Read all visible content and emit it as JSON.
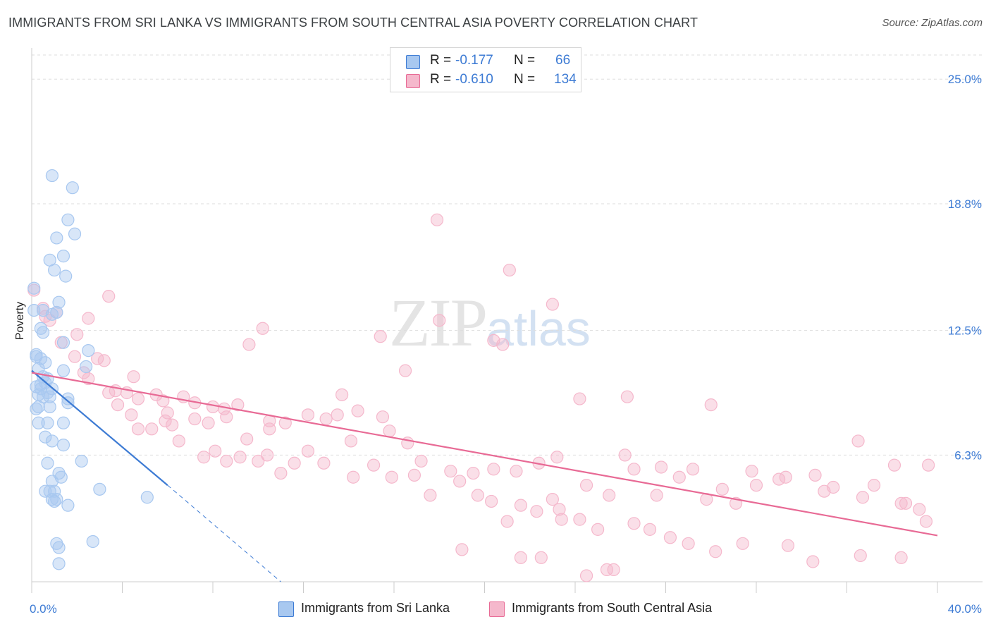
{
  "title": "IMMIGRANTS FROM SRI LANKA VS IMMIGRANTS FROM SOUTH CENTRAL ASIA POVERTY CORRELATION CHART",
  "source": "Source: ZipAtlas.com",
  "watermark": {
    "zip": "ZIP",
    "atlas": "atlas"
  },
  "colors": {
    "blue": "#3d7bd4",
    "blue_fill": "#a8c8f0",
    "pink": "#e86a95",
    "pink_fill": "#f5b8cc",
    "grid": "#dddddd"
  },
  "legend": {
    "rows": [
      {
        "r_label": "R =",
        "r_value": "-0.177",
        "n_label": "N =",
        "n_value": "66"
      },
      {
        "r_label": "R =",
        "r_value": "-0.610",
        "n_label": "N =",
        "n_value": "134"
      }
    ]
  },
  "bottom_legend": [
    "Immigrants from Sri Lanka",
    "Immigrants from South Central Asia"
  ],
  "chart_data": {
    "type": "scatter",
    "title": "IMMIGRANTS FROM SRI LANKA VS IMMIGRANTS FROM SOUTH CENTRAL ASIA POVERTY CORRELATION CHART",
    "xlabel": "",
    "ylabel": "Poverty",
    "xlim": [
      0,
      40
    ],
    "ylim": [
      0,
      26.2
    ],
    "x_tick_labels": [
      "0.0%",
      "40.0%"
    ],
    "y_ticks": [
      6.3,
      12.5,
      18.8,
      25.0
    ],
    "y_tick_labels": [
      "6.3%",
      "12.5%",
      "18.8%",
      "25.0%"
    ],
    "grid": true,
    "series": [
      {
        "name": "Immigrants from Sri Lanka",
        "color": "#3d7bd4",
        "fill": "#a8c8f0",
        "trend": {
          "x": [
            0,
            6.0
          ],
          "y": [
            10.5,
            4.8
          ],
          "dashed_to": [
            11.0,
            0
          ]
        },
        "points": [
          [
            0.9,
            20.2
          ],
          [
            1.8,
            19.6
          ],
          [
            1.6,
            18.0
          ],
          [
            1.1,
            17.1
          ],
          [
            1.9,
            17.3
          ],
          [
            1.4,
            16.2
          ],
          [
            0.8,
            16.0
          ],
          [
            1.0,
            15.5
          ],
          [
            1.5,
            15.2
          ],
          [
            0.1,
            14.6
          ],
          [
            1.2,
            13.9
          ],
          [
            0.5,
            13.5
          ],
          [
            0.9,
            13.3
          ],
          [
            1.1,
            13.4
          ],
          [
            0.4,
            12.6
          ],
          [
            0.5,
            12.4
          ],
          [
            1.4,
            11.9
          ],
          [
            2.5,
            11.5
          ],
          [
            0.2,
            11.3
          ],
          [
            0.4,
            11.1
          ],
          [
            0.6,
            10.9
          ],
          [
            0.3,
            10.6
          ],
          [
            1.4,
            10.5
          ],
          [
            2.4,
            10.7
          ],
          [
            0.5,
            10.2
          ],
          [
            0.7,
            10.1
          ],
          [
            0.6,
            9.9
          ],
          [
            0.2,
            9.7
          ],
          [
            0.4,
            9.6
          ],
          [
            0.9,
            9.6
          ],
          [
            0.7,
            9.4
          ],
          [
            0.3,
            9.3
          ],
          [
            0.5,
            9.2
          ],
          [
            0.8,
            9.2
          ],
          [
            1.6,
            9.1
          ],
          [
            1.6,
            8.9
          ],
          [
            0.3,
            8.7
          ],
          [
            0.8,
            8.7
          ],
          [
            0.2,
            8.6
          ],
          [
            0.3,
            7.9
          ],
          [
            0.7,
            7.9
          ],
          [
            1.4,
            7.9
          ],
          [
            0.6,
            7.2
          ],
          [
            0.9,
            7.0
          ],
          [
            1.4,
            6.8
          ],
          [
            2.2,
            6.0
          ],
          [
            0.7,
            5.9
          ],
          [
            1.2,
            5.4
          ],
          [
            1.3,
            5.2
          ],
          [
            0.9,
            5.0
          ],
          [
            0.8,
            4.5
          ],
          [
            1.0,
            4.5
          ],
          [
            1.0,
            4.0
          ],
          [
            1.6,
            3.8
          ],
          [
            3.0,
            4.6
          ],
          [
            5.1,
            4.2
          ],
          [
            1.1,
            1.9
          ],
          [
            2.7,
            2.0
          ],
          [
            1.2,
            1.7
          ],
          [
            1.2,
            0.9
          ],
          [
            0.9,
            4.1
          ],
          [
            1.1,
            4.1
          ],
          [
            0.6,
            4.5
          ],
          [
            0.4,
            9.8
          ],
          [
            0.2,
            11.2
          ],
          [
            0.1,
            13.5
          ]
        ]
      },
      {
        "name": "Immigrants from South Central Asia",
        "color": "#e86a95",
        "fill": "#f5b8cc",
        "trend": {
          "x": [
            0,
            40
          ],
          "y": [
            10.4,
            2.3
          ]
        },
        "points": [
          [
            0.1,
            14.5
          ],
          [
            0.5,
            13.6
          ],
          [
            0.6,
            13.2
          ],
          [
            1.1,
            13.4
          ],
          [
            0.8,
            13.0
          ],
          [
            1.3,
            11.9
          ],
          [
            2.0,
            12.3
          ],
          [
            3.4,
            14.2
          ],
          [
            2.5,
            13.1
          ],
          [
            1.9,
            11.2
          ],
          [
            2.9,
            11.1
          ],
          [
            3.2,
            11.0
          ],
          [
            2.3,
            10.4
          ],
          [
            2.5,
            10.1
          ],
          [
            4.5,
            10.2
          ],
          [
            3.7,
            9.5
          ],
          [
            3.4,
            9.4
          ],
          [
            4.2,
            9.4
          ],
          [
            4.7,
            9.1
          ],
          [
            5.5,
            9.3
          ],
          [
            5.8,
            9.0
          ],
          [
            6.7,
            9.2
          ],
          [
            7.2,
            8.9
          ],
          [
            8.0,
            8.7
          ],
          [
            8.5,
            8.6
          ],
          [
            9.1,
            8.8
          ],
          [
            3.8,
            8.8
          ],
          [
            4.4,
            8.3
          ],
          [
            6.0,
            8.4
          ],
          [
            5.9,
            8.0
          ],
          [
            6.2,
            7.8
          ],
          [
            5.3,
            7.6
          ],
          [
            7.2,
            8.1
          ],
          [
            7.8,
            7.9
          ],
          [
            8.6,
            8.2
          ],
          [
            9.5,
            7.1
          ],
          [
            10.5,
            7.6
          ],
          [
            10.5,
            8.0
          ],
          [
            11.2,
            7.9
          ],
          [
            12.2,
            8.3
          ],
          [
            13.0,
            8.1
          ],
          [
            13.7,
            9.3
          ],
          [
            14.4,
            8.5
          ],
          [
            15.5,
            8.2
          ],
          [
            16.5,
            10.5
          ],
          [
            15.4,
            12.2
          ],
          [
            17.9,
            18.0
          ],
          [
            18.0,
            13.0
          ],
          [
            20.4,
            12.0
          ],
          [
            20.8,
            11.8
          ],
          [
            21.1,
            15.5
          ],
          [
            23.0,
            13.8
          ],
          [
            23.2,
            6.2
          ],
          [
            24.2,
            9.1
          ],
          [
            26.3,
            9.2
          ],
          [
            27.8,
            5.7
          ],
          [
            29.2,
            5.6
          ],
          [
            31.8,
            5.5
          ],
          [
            33.3,
            5.2
          ],
          [
            34.6,
            5.3
          ],
          [
            35.4,
            4.7
          ],
          [
            36.7,
            4.2
          ],
          [
            38.1,
            5.8
          ],
          [
            39.6,
            5.8
          ],
          [
            38.6,
            3.9
          ],
          [
            10.2,
            12.6
          ],
          [
            9.6,
            11.8
          ],
          [
            13.5,
            8.3
          ],
          [
            14.1,
            7.0
          ],
          [
            15.8,
            7.5
          ],
          [
            16.6,
            6.9
          ],
          [
            17.2,
            6.0
          ],
          [
            18.5,
            5.5
          ],
          [
            19.5,
            5.4
          ],
          [
            20.4,
            5.6
          ],
          [
            21.4,
            5.5
          ],
          [
            22.4,
            5.9
          ],
          [
            23.0,
            4.1
          ],
          [
            24.5,
            4.8
          ],
          [
            25.5,
            4.3
          ],
          [
            26.6,
            5.6
          ],
          [
            26.2,
            6.3
          ],
          [
            27.6,
            4.3
          ],
          [
            28.6,
            5.2
          ],
          [
            29.8,
            4.1
          ],
          [
            31.1,
            3.9
          ],
          [
            32.0,
            4.8
          ],
          [
            33.0,
            5.1
          ],
          [
            35.0,
            4.5
          ],
          [
            37.2,
            4.8
          ],
          [
            38.4,
            3.9
          ],
          [
            39.2,
            3.6
          ],
          [
            11.6,
            5.9
          ],
          [
            12.2,
            6.5
          ],
          [
            12.9,
            5.9
          ],
          [
            14.2,
            5.2
          ],
          [
            15.1,
            5.8
          ],
          [
            15.9,
            5.2
          ],
          [
            16.9,
            5.3
          ],
          [
            17.6,
            4.3
          ],
          [
            18.9,
            5.0
          ],
          [
            19.7,
            4.3
          ],
          [
            20.3,
            4.0
          ],
          [
            21.0,
            3.0
          ],
          [
            21.6,
            3.8
          ],
          [
            22.3,
            3.5
          ],
          [
            23.4,
            3.1
          ],
          [
            24.2,
            3.1
          ],
          [
            25.0,
            2.6
          ],
          [
            26.6,
            2.9
          ],
          [
            27.3,
            2.6
          ],
          [
            28.2,
            2.2
          ],
          [
            29.0,
            1.9
          ],
          [
            30.2,
            1.5
          ],
          [
            31.4,
            1.9
          ],
          [
            33.4,
            1.8
          ],
          [
            34.5,
            1.0
          ],
          [
            36.6,
            1.3
          ],
          [
            38.4,
            1.2
          ],
          [
            19.0,
            1.6
          ],
          [
            21.6,
            1.2
          ],
          [
            22.5,
            1.2
          ],
          [
            25.4,
            0.6
          ],
          [
            25.7,
            0.6
          ],
          [
            24.5,
            0.3
          ],
          [
            23.3,
            3.6
          ],
          [
            4.7,
            7.6
          ],
          [
            6.5,
            7.0
          ],
          [
            8.1,
            6.5
          ],
          [
            9.2,
            6.2
          ],
          [
            10.4,
            6.3
          ],
          [
            11.0,
            5.4
          ],
          [
            7.6,
            6.2
          ],
          [
            8.6,
            6.0
          ],
          [
            10.0,
            6.0
          ],
          [
            30.0,
            8.8
          ],
          [
            36.5,
            7.0
          ],
          [
            39.5,
            3.0
          ],
          [
            30.5,
            4.6
          ]
        ]
      }
    ]
  }
}
